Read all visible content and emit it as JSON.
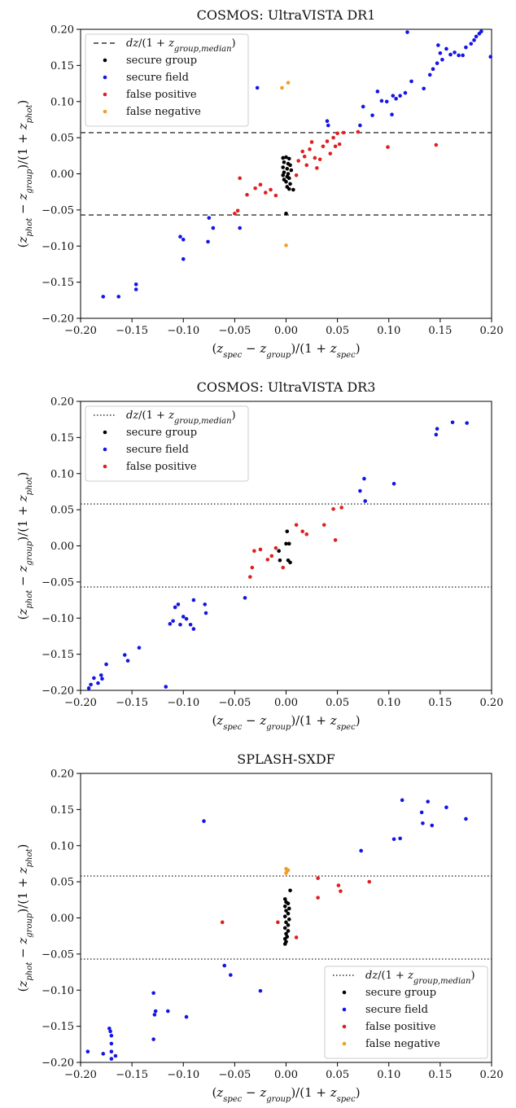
{
  "chart_data": [
    {
      "type": "scatter",
      "title": "COSMOS: UltraVISTA DR1",
      "xlabel": "(z_spec − z_group)/(1 + z_spec)",
      "ylabel": "(z_phot − z_group)/(1 + z_phot)",
      "xlim": [
        -0.2,
        0.2
      ],
      "ylim": [
        -0.2,
        0.2
      ],
      "xticks": [
        "−0.20",
        "−0.15",
        "−0.10",
        "−0.05",
        "0.00",
        "0.05",
        "0.10",
        "0.15",
        "0.20"
      ],
      "yticks": [
        "−0.20",
        "−0.15",
        "−0.10",
        "−0.05",
        "0.00",
        "0.05",
        "0.10",
        "0.15",
        "0.20"
      ],
      "grid": false,
      "legend_position": "upper-left",
      "threshold_lines": {
        "values": [
          0.057,
          -0.057
        ],
        "style": "dashed",
        "label": "dz/(1 + z_group,median)"
      },
      "series": [
        {
          "name": "secure group",
          "color": "#000000",
          "points": [
            [
              -0.003,
              0.022
            ],
            [
              0.0,
              0.023
            ],
            [
              0.003,
              0.021
            ],
            [
              -0.002,
              0.016
            ],
            [
              0.002,
              0.014
            ],
            [
              0.004,
              0.012
            ],
            [
              -0.003,
              0.009
            ],
            [
              0.001,
              0.007
            ],
            [
              0.005,
              0.005
            ],
            [
              -0.002,
              0.002
            ],
            [
              0.002,
              0.0
            ],
            [
              -0.003,
              -0.002
            ],
            [
              0.001,
              -0.004
            ],
            [
              0.003,
              -0.006
            ],
            [
              -0.002,
              -0.008
            ],
            [
              0.0,
              -0.011
            ],
            [
              0.004,
              -0.014
            ],
            [
              0.001,
              -0.018
            ],
            [
              0.003,
              -0.021
            ],
            [
              0.007,
              -0.022
            ],
            [
              0.0,
              -0.055
            ]
          ]
        },
        {
          "name": "secure field",
          "color": "#1515e6",
          "points": [
            [
              -0.178,
              -0.17
            ],
            [
              -0.163,
              -0.17
            ],
            [
              -0.146,
              -0.153
            ],
            [
              -0.146,
              -0.16
            ],
            [
              -0.103,
              -0.087
            ],
            [
              -0.1,
              -0.091
            ],
            [
              -0.1,
              -0.118
            ],
            [
              -0.075,
              -0.061
            ],
            [
              -0.071,
              -0.075
            ],
            [
              -0.076,
              -0.094
            ],
            [
              -0.045,
              -0.075
            ],
            [
              -0.028,
              0.119
            ],
            [
              0.04,
              0.073
            ],
            [
              0.041,
              0.067
            ],
            [
              0.072,
              0.067
            ],
            [
              0.075,
              0.093
            ],
            [
              0.084,
              0.081
            ],
            [
              0.089,
              0.114
            ],
            [
              0.093,
              0.101
            ],
            [
              0.098,
              0.1
            ],
            [
              0.103,
              0.082
            ],
            [
              0.104,
              0.108
            ],
            [
              0.107,
              0.104
            ],
            [
              0.111,
              0.108
            ],
            [
              0.116,
              0.112
            ],
            [
              0.118,
              0.196
            ],
            [
              0.122,
              0.128
            ],
            [
              0.134,
              0.118
            ],
            [
              0.14,
              0.137
            ],
            [
              0.143,
              0.145
            ],
            [
              0.147,
              0.153
            ],
            [
              0.148,
              0.178
            ],
            [
              0.15,
              0.167
            ],
            [
              0.152,
              0.158
            ],
            [
              0.156,
              0.173
            ],
            [
              0.16,
              0.165
            ],
            [
              0.164,
              0.168
            ],
            [
              0.168,
              0.164
            ],
            [
              0.172,
              0.164
            ],
            [
              0.175,
              0.175
            ],
            [
              0.18,
              0.18
            ],
            [
              0.183,
              0.185
            ],
            [
              0.185,
              0.19
            ],
            [
              0.188,
              0.194
            ],
            [
              0.19,
              0.197
            ],
            [
              0.199,
              0.162
            ]
          ]
        },
        {
          "name": "false positive",
          "color": "#e02020",
          "points": [
            [
              -0.05,
              -0.055
            ],
            [
              -0.047,
              -0.051
            ],
            [
              -0.045,
              -0.006
            ],
            [
              -0.038,
              -0.029
            ],
            [
              -0.03,
              -0.02
            ],
            [
              -0.025,
              -0.015
            ],
            [
              -0.02,
              -0.026
            ],
            [
              -0.015,
              -0.022
            ],
            [
              -0.01,
              -0.03
            ],
            [
              0.01,
              -0.002
            ],
            [
              0.012,
              0.018
            ],
            [
              0.016,
              0.031
            ],
            [
              0.018,
              0.024
            ],
            [
              0.02,
              0.012
            ],
            [
              0.023,
              0.034
            ],
            [
              0.025,
              0.044
            ],
            [
              0.028,
              0.022
            ],
            [
              0.03,
              0.008
            ],
            [
              0.033,
              0.02
            ],
            [
              0.036,
              0.038
            ],
            [
              0.04,
              0.045
            ],
            [
              0.043,
              0.028
            ],
            [
              0.046,
              0.05
            ],
            [
              0.048,
              0.038
            ],
            [
              0.05,
              0.056
            ],
            [
              0.052,
              0.041
            ],
            [
              0.056,
              0.057
            ],
            [
              0.07,
              0.058
            ],
            [
              0.099,
              0.037
            ],
            [
              0.146,
              0.04
            ]
          ]
        },
        {
          "name": "false negative",
          "color": "#f0a020",
          "points": [
            [
              -0.004,
              0.119
            ],
            [
              0.002,
              0.126
            ],
            [
              0.0,
              -0.099
            ]
          ]
        }
      ]
    },
    {
      "type": "scatter",
      "title": "COSMOS: UltraVISTA DR3",
      "xlabel": "(z_spec − z_group)/(1 + z_spec)",
      "ylabel": "(z_phot − z_group)/(1 + z_phot)",
      "xlim": [
        -0.2,
        0.2
      ],
      "ylim": [
        -0.2,
        0.2
      ],
      "xticks": [
        "−0.20",
        "−0.15",
        "−0.10",
        "−0.05",
        "0.00",
        "0.05",
        "0.10",
        "0.15",
        "0.20"
      ],
      "yticks": [
        "−0.20",
        "−0.15",
        "−0.10",
        "−0.05",
        "0.00",
        "0.05",
        "0.10",
        "0.15",
        "0.20"
      ],
      "grid": false,
      "legend_position": "upper-left",
      "threshold_lines": {
        "values": [
          0.058,
          -0.057
        ],
        "style": "dotted",
        "label": "dz/(1 + z_group,median)"
      },
      "series": [
        {
          "name": "secure group",
          "color": "#000000",
          "points": [
            [
              -0.007,
              -0.007
            ],
            [
              -0.006,
              -0.02
            ],
            [
              0.0,
              0.003
            ],
            [
              0.001,
              0.02
            ],
            [
              0.003,
              0.003
            ],
            [
              0.002,
              -0.02
            ],
            [
              0.004,
              -0.023
            ]
          ]
        },
        {
          "name": "secure field",
          "color": "#1515e6",
          "points": [
            [
              -0.192,
              -0.197
            ],
            [
              -0.19,
              -0.192
            ],
            [
              -0.187,
              -0.183
            ],
            [
              -0.183,
              -0.19
            ],
            [
              -0.18,
              -0.179
            ],
            [
              -0.179,
              -0.184
            ],
            [
              -0.175,
              -0.164
            ],
            [
              -0.157,
              -0.151
            ],
            [
              -0.154,
              -0.159
            ],
            [
              -0.143,
              -0.141
            ],
            [
              -0.117,
              -0.195
            ],
            [
              -0.113,
              -0.108
            ],
            [
              -0.11,
              -0.104
            ],
            [
              -0.108,
              -0.085
            ],
            [
              -0.105,
              -0.081
            ],
            [
              -0.103,
              -0.109
            ],
            [
              -0.1,
              -0.098
            ],
            [
              -0.097,
              -0.101
            ],
            [
              -0.093,
              -0.109
            ],
            [
              -0.09,
              -0.075
            ],
            [
              -0.09,
              -0.115
            ],
            [
              -0.079,
              -0.081
            ],
            [
              -0.078,
              -0.093
            ],
            [
              -0.04,
              -0.072
            ],
            [
              0.072,
              0.076
            ],
            [
              0.076,
              0.093
            ],
            [
              0.077,
              0.062
            ],
            [
              0.105,
              0.086
            ],
            [
              0.146,
              0.154
            ],
            [
              0.147,
              0.162
            ],
            [
              0.162,
              0.171
            ],
            [
              0.176,
              0.17
            ]
          ]
        },
        {
          "name": "false positive",
          "color": "#e02020",
          "points": [
            [
              -0.035,
              -0.043
            ],
            [
              -0.033,
              -0.03
            ],
            [
              -0.031,
              -0.007
            ],
            [
              -0.025,
              -0.005
            ],
            [
              -0.018,
              -0.019
            ],
            [
              -0.014,
              -0.014
            ],
            [
              -0.01,
              -0.003
            ],
            [
              -0.003,
              -0.03
            ],
            [
              0.01,
              0.029
            ],
            [
              0.016,
              0.02
            ],
            [
              0.02,
              0.016
            ],
            [
              0.037,
              0.029
            ],
            [
              0.046,
              0.051
            ],
            [
              0.048,
              0.008
            ],
            [
              0.054,
              0.053
            ]
          ]
        }
      ]
    },
    {
      "type": "scatter",
      "title": "SPLASH-SXDF",
      "xlabel": "(z_spec − z_group)/(1 + z_spec)",
      "ylabel": "(z_phot − z_group)/(1 + z_phot)",
      "xlim": [
        -0.2,
        0.2
      ],
      "ylim": [
        -0.2,
        0.2
      ],
      "xticks": [
        "−0.20",
        "−0.15",
        "−0.10",
        "−0.05",
        "0.00",
        "0.05",
        "0.10",
        "0.15",
        "0.20"
      ],
      "yticks": [
        "−0.20",
        "−0.15",
        "−0.10",
        "−0.05",
        "0.00",
        "0.05",
        "0.10",
        "0.15",
        "0.20"
      ],
      "grid": false,
      "legend_position": "lower-right",
      "threshold_lines": {
        "values": [
          0.058,
          -0.057
        ],
        "style": "dotted",
        "label": "dz/(1 + z_group,median)"
      },
      "series": [
        {
          "name": "secure group",
          "color": "#000000",
          "points": [
            [
              0.004,
              0.038
            ],
            [
              -0.001,
              0.026
            ],
            [
              0.0,
              0.022
            ],
            [
              0.002,
              0.02
            ],
            [
              -0.001,
              0.016
            ],
            [
              0.003,
              0.013
            ],
            [
              0.0,
              0.01
            ],
            [
              0.002,
              0.006
            ],
            [
              -0.001,
              0.002
            ],
            [
              0.003,
              -0.002
            ],
            [
              0.0,
              -0.006
            ],
            [
              0.002,
              -0.01
            ],
            [
              -0.001,
              -0.014
            ],
            [
              0.002,
              -0.018
            ],
            [
              0.0,
              -0.022
            ],
            [
              0.001,
              -0.026
            ],
            [
              -0.001,
              -0.029
            ],
            [
              0.0,
              -0.033
            ],
            [
              -0.001,
              -0.036
            ]
          ]
        },
        {
          "name": "secure field",
          "color": "#1515e6",
          "points": [
            [
              -0.193,
              -0.185
            ],
            [
              -0.178,
              -0.188
            ],
            [
              -0.172,
              -0.153
            ],
            [
              -0.171,
              -0.157
            ],
            [
              -0.17,
              -0.163
            ],
            [
              -0.17,
              -0.174
            ],
            [
              -0.17,
              -0.185
            ],
            [
              -0.17,
              -0.195
            ],
            [
              -0.166,
              -0.191
            ],
            [
              -0.129,
              -0.104
            ],
            [
              -0.128,
              -0.134
            ],
            [
              -0.127,
              -0.129
            ],
            [
              -0.129,
              -0.168
            ],
            [
              -0.115,
              -0.129
            ],
            [
              -0.097,
              -0.137
            ],
            [
              -0.08,
              0.134
            ],
            [
              -0.06,
              -0.066
            ],
            [
              -0.054,
              -0.079
            ],
            [
              -0.025,
              -0.101
            ],
            [
              0.073,
              0.093
            ],
            [
              0.105,
              0.109
            ],
            [
              0.111,
              0.11
            ],
            [
              0.113,
              0.163
            ],
            [
              0.132,
              0.146
            ],
            [
              0.133,
              0.131
            ],
            [
              0.138,
              0.161
            ],
            [
              0.142,
              0.128
            ],
            [
              0.156,
              0.153
            ],
            [
              0.175,
              0.137
            ]
          ]
        },
        {
          "name": "false positive",
          "color": "#e02020",
          "points": [
            [
              -0.062,
              -0.006
            ],
            [
              -0.008,
              -0.006
            ],
            [
              0.01,
              -0.027
            ],
            [
              0.031,
              0.055
            ],
            [
              0.031,
              0.028
            ],
            [
              0.051,
              0.045
            ],
            [
              0.053,
              0.037
            ],
            [
              0.081,
              0.05
            ]
          ]
        },
        {
          "name": "false negative",
          "color": "#f0a020",
          "points": [
            [
              0.0,
              0.062
            ],
            [
              0.001,
              0.065
            ],
            [
              0.0,
              0.068
            ],
            [
              0.002,
              0.066
            ]
          ]
        }
      ]
    }
  ]
}
